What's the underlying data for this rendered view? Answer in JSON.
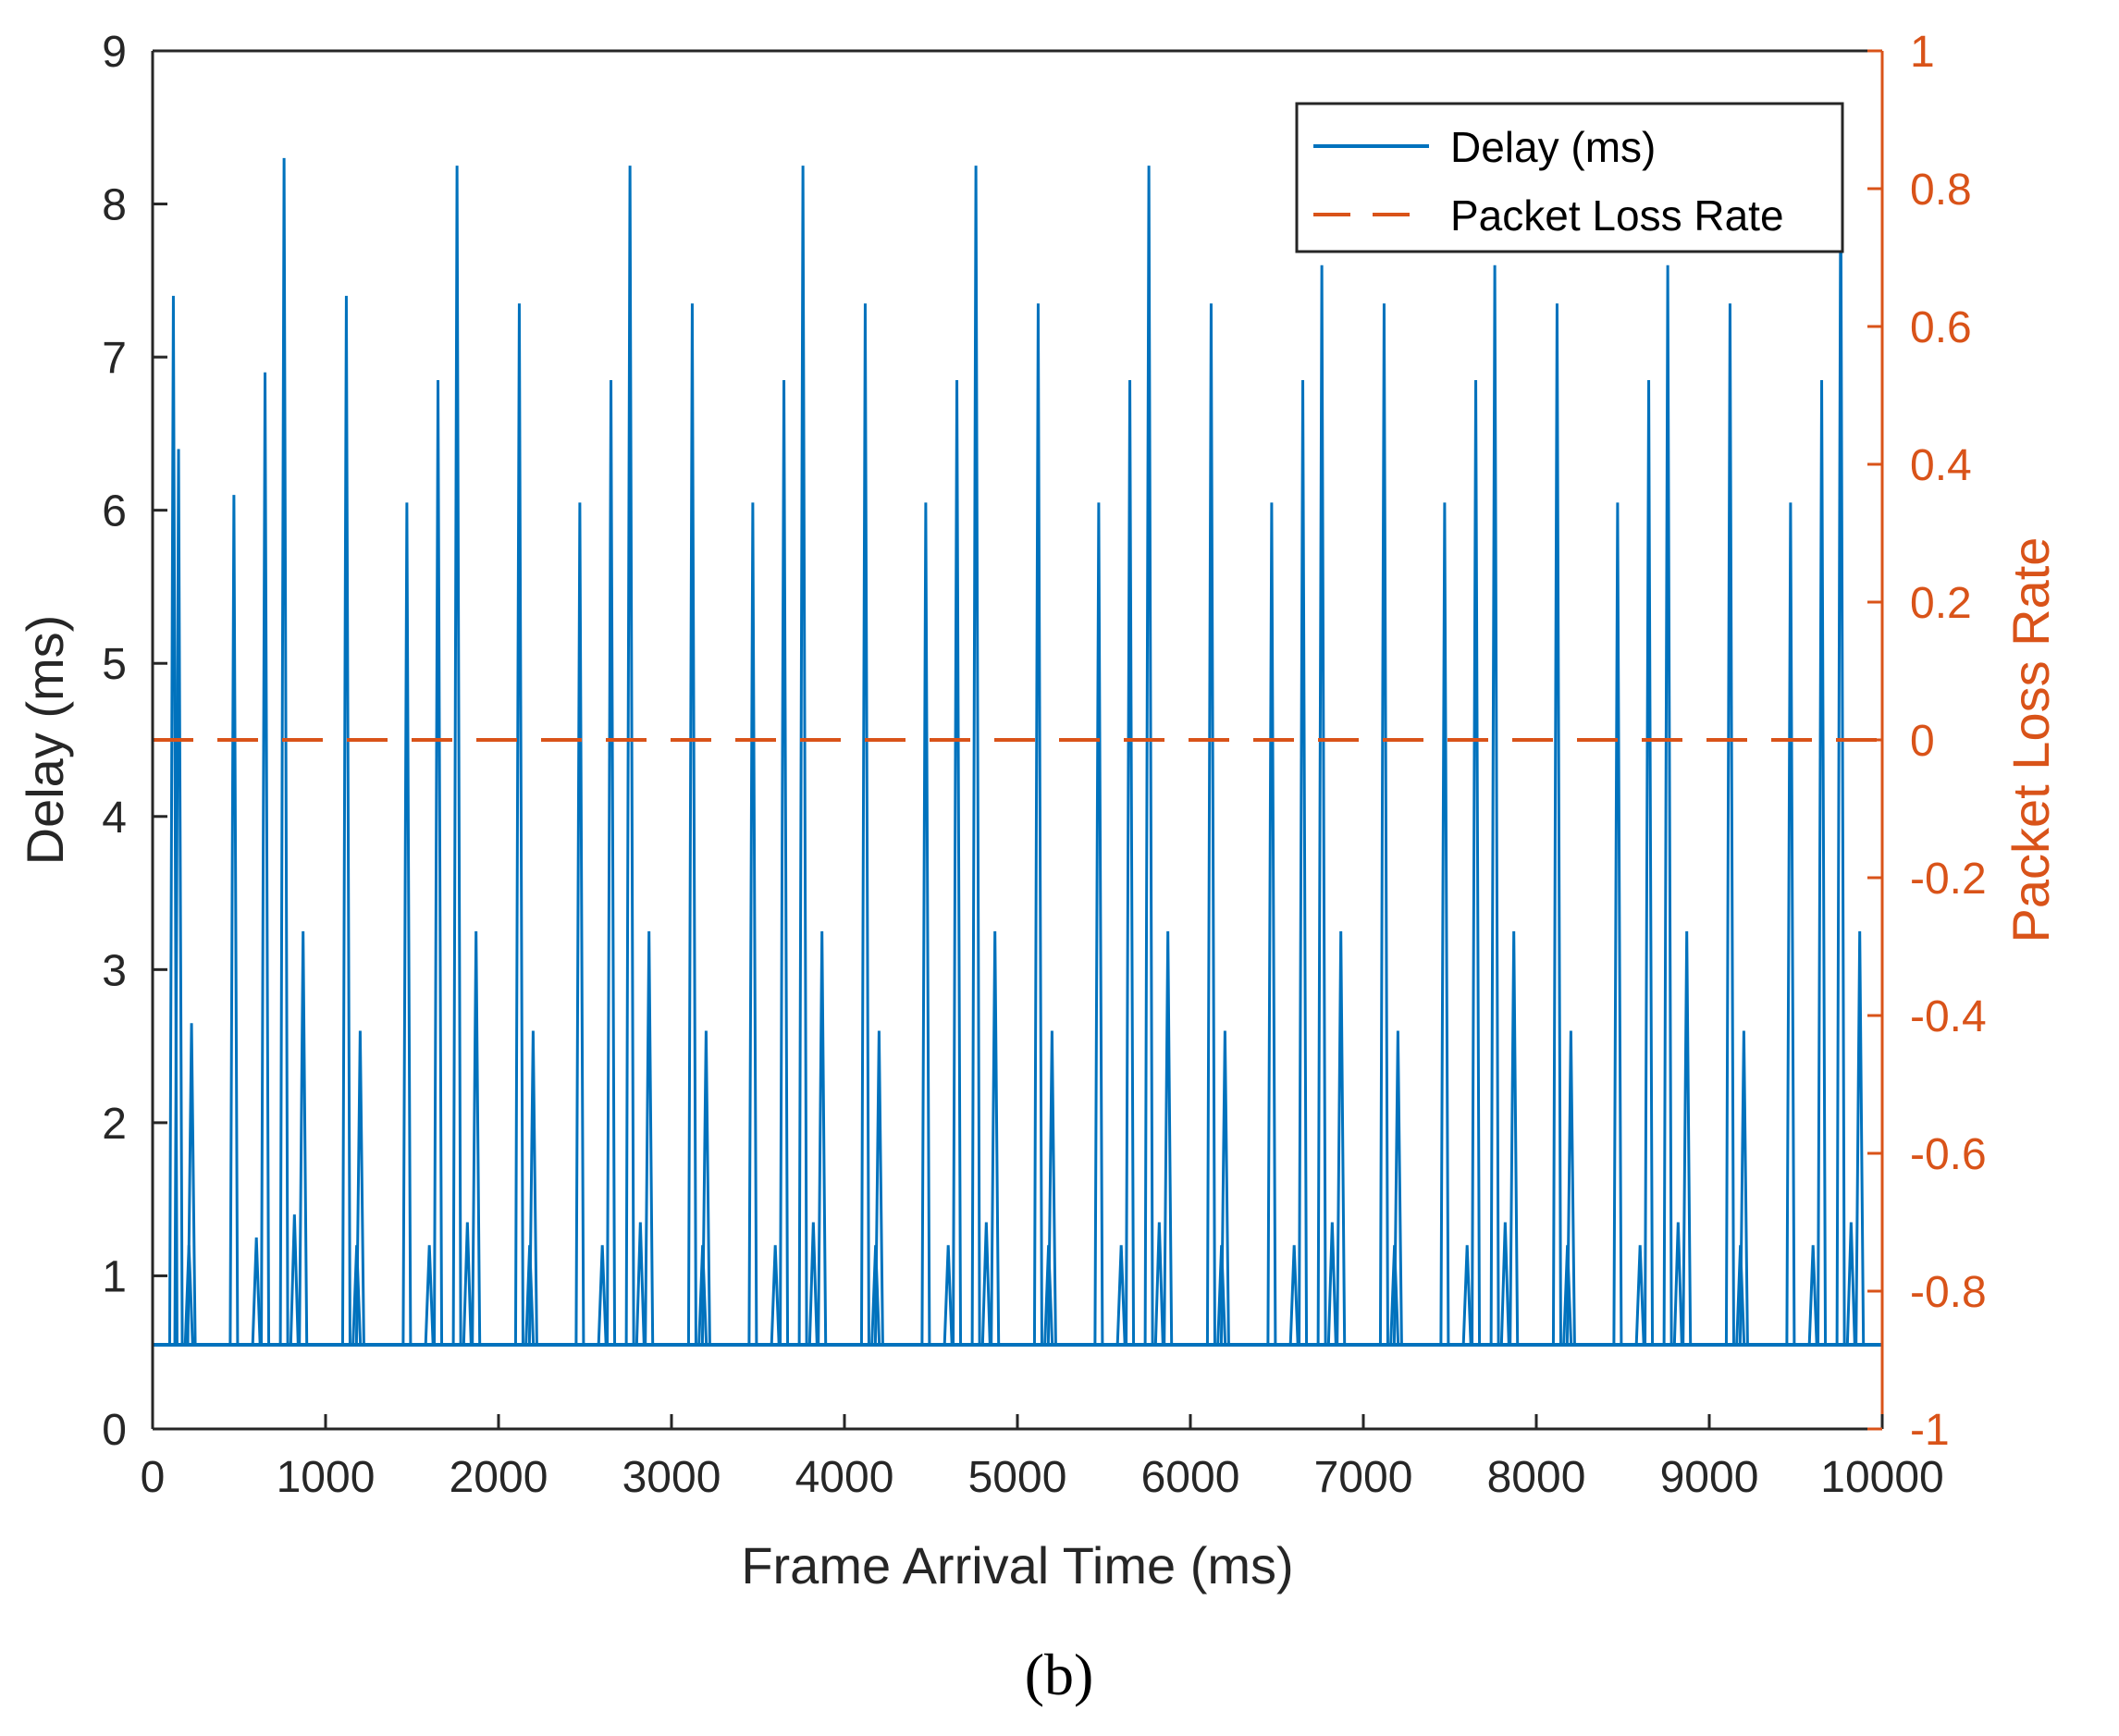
{
  "chart_data": {
    "type": "line",
    "title": "",
    "xlabel": "Frame Arrival Time (ms)",
    "ylabel_left": "Delay (ms)",
    "ylabel_right": "Packet Loss Rate",
    "xlim": [
      0,
      10000
    ],
    "ylim_left": [
      0,
      9
    ],
    "ylim_right": [
      -1,
      1
    ],
    "x_ticks": [
      "0",
      "1000",
      "2000",
      "3000",
      "4000",
      "5000",
      "6000",
      "7000",
      "8000",
      "9000",
      "10000"
    ],
    "y_ticks_left": [
      "0",
      "1",
      "2",
      "3",
      "4",
      "5",
      "6",
      "7",
      "8",
      "9"
    ],
    "y_ticks_right": [
      "-1",
      "-0.8",
      "-0.6",
      "-0.4",
      "-0.2",
      "0",
      "0.2",
      "0.4",
      "0.6",
      "0.8",
      "1"
    ],
    "legend_position": "top-right",
    "caption": "(b)",
    "colors": {
      "delay": "#0072BD",
      "loss": "#D95319"
    },
    "baseline_delay": 0.55,
    "series": [
      {
        "name": "Delay (ms)",
        "axis": "left",
        "style": "solid",
        "color": "#0072BD",
        "spikes": [
          [
            120,
            7.4
          ],
          [
            150,
            6.4
          ],
          [
            210,
            1.2
          ],
          [
            225,
            2.65
          ],
          [
            470,
            6.1
          ],
          [
            600,
            1.25
          ],
          [
            650,
            6.9
          ],
          [
            760,
            8.3
          ],
          [
            820,
            1.4
          ],
          [
            870,
            3.25
          ],
          [
            1120,
            7.4
          ],
          [
            1180,
            1.2
          ],
          [
            1200,
            2.6
          ],
          [
            1470,
            6.05
          ],
          [
            1600,
            1.2
          ],
          [
            1650,
            6.85
          ],
          [
            1760,
            8.25
          ],
          [
            1820,
            1.35
          ],
          [
            1870,
            3.25
          ],
          [
            2120,
            7.35
          ],
          [
            2180,
            1.2
          ],
          [
            2200,
            2.6
          ],
          [
            2470,
            6.05
          ],
          [
            2600,
            1.2
          ],
          [
            2650,
            6.85
          ],
          [
            2760,
            8.25
          ],
          [
            2820,
            1.35
          ],
          [
            2870,
            3.25
          ],
          [
            3120,
            7.35
          ],
          [
            3180,
            1.2
          ],
          [
            3200,
            2.6
          ],
          [
            3470,
            6.05
          ],
          [
            3600,
            1.2
          ],
          [
            3650,
            6.85
          ],
          [
            3760,
            8.25
          ],
          [
            3820,
            1.35
          ],
          [
            3870,
            3.25
          ],
          [
            4120,
            7.35
          ],
          [
            4180,
            1.2
          ],
          [
            4200,
            2.6
          ],
          [
            4470,
            6.05
          ],
          [
            4600,
            1.2
          ],
          [
            4650,
            6.85
          ],
          [
            4760,
            8.25
          ],
          [
            4820,
            1.35
          ],
          [
            4870,
            3.25
          ],
          [
            5120,
            7.35
          ],
          [
            5180,
            1.2
          ],
          [
            5200,
            2.6
          ],
          [
            5470,
            6.05
          ],
          [
            5600,
            1.2
          ],
          [
            5650,
            6.85
          ],
          [
            5760,
            8.25
          ],
          [
            5820,
            1.35
          ],
          [
            5870,
            3.25
          ],
          [
            6120,
            7.35
          ],
          [
            6180,
            1.2
          ],
          [
            6200,
            2.6
          ],
          [
            6470,
            6.05
          ],
          [
            6600,
            1.2
          ],
          [
            6650,
            6.85
          ],
          [
            6760,
            7.6
          ],
          [
            6820,
            1.35
          ],
          [
            6870,
            3.25
          ],
          [
            7120,
            7.35
          ],
          [
            7180,
            1.2
          ],
          [
            7200,
            2.6
          ],
          [
            7470,
            6.05
          ],
          [
            7600,
            1.2
          ],
          [
            7650,
            6.85
          ],
          [
            7760,
            7.6
          ],
          [
            7820,
            1.35
          ],
          [
            7870,
            3.25
          ],
          [
            8120,
            7.35
          ],
          [
            8180,
            1.2
          ],
          [
            8200,
            2.6
          ],
          [
            8470,
            6.05
          ],
          [
            8600,
            1.2
          ],
          [
            8650,
            6.85
          ],
          [
            8760,
            7.6
          ],
          [
            8820,
            1.35
          ],
          [
            8870,
            3.25
          ],
          [
            9120,
            7.35
          ],
          [
            9180,
            1.2
          ],
          [
            9200,
            2.6
          ],
          [
            9470,
            6.05
          ],
          [
            9600,
            1.2
          ],
          [
            9650,
            6.85
          ],
          [
            9760,
            8.25
          ],
          [
            9820,
            1.35
          ],
          [
            9870,
            3.25
          ]
        ]
      },
      {
        "name": "Packet Loss Rate",
        "axis": "right",
        "style": "dashed",
        "color": "#D95319",
        "x": [
          0,
          10000
        ],
        "values": [
          0,
          0
        ]
      }
    ]
  }
}
